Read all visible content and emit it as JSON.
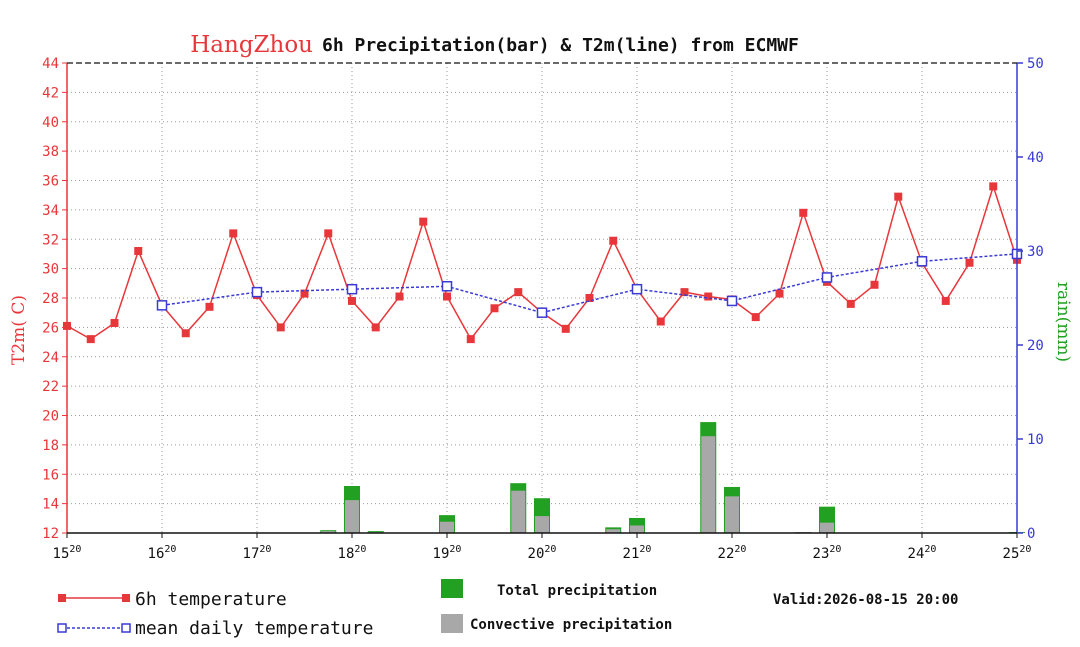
{
  "chart_data": {
    "type": "bar+line",
    "title_city": "HangZhou",
    "title_rest": "6h Precipitation(bar) & T2m(line) from ECMWF",
    "y_left_label": "T2m( C)",
    "y_right_label": "rain(mm)",
    "y_left_range": [
      12,
      44
    ],
    "y_left_ticks": [
      "12",
      "14",
      "16",
      "18",
      "20",
      "22",
      "24",
      "26",
      "28",
      "30",
      "32",
      "34",
      "36",
      "38",
      "40",
      "42",
      "44"
    ],
    "y_right_range": [
      0,
      50
    ],
    "y_right_ticks": [
      "0",
      "10",
      "20",
      "30",
      "40",
      "50"
    ],
    "x_range": [
      15.0,
      25.0
    ],
    "x_ticks": [
      {
        "day": "15",
        "hour": "20"
      },
      {
        "day": "16",
        "hour": "20"
      },
      {
        "day": "17",
        "hour": "20"
      },
      {
        "day": "18",
        "hour": "20"
      },
      {
        "day": "19",
        "hour": "20"
      },
      {
        "day": "20",
        "hour": "20"
      },
      {
        "day": "21",
        "hour": "20"
      },
      {
        "day": "22",
        "hour": "20"
      },
      {
        "day": "23",
        "hour": "20"
      },
      {
        "day": "24",
        "hour": "20"
      },
      {
        "day": "25",
        "hour": "20"
      }
    ],
    "grid": true,
    "series_6h_temperature": {
      "name": "6h temperature",
      "color": "#e8373b",
      "x": [
        15.0,
        15.25,
        15.5,
        15.75,
        16.0,
        16.25,
        16.5,
        16.75,
        17.0,
        17.25,
        17.5,
        17.75,
        18.0,
        18.25,
        18.5,
        18.75,
        19.0,
        19.25,
        19.5,
        19.75,
        20.0,
        20.25,
        20.5,
        20.75,
        21.0,
        21.25,
        21.5,
        21.75,
        22.0,
        22.25,
        22.5,
        22.75,
        23.0,
        23.25,
        23.5,
        23.75,
        24.0,
        24.25,
        24.5,
        24.75,
        25.0
      ],
      "y": [
        26.1,
        25.2,
        26.3,
        31.2,
        27.5,
        25.6,
        27.4,
        32.4,
        28.2,
        26.0,
        28.3,
        32.4,
        27.8,
        26.0,
        28.1,
        33.2,
        28.1,
        25.2,
        27.3,
        28.4,
        27.0,
        25.9,
        28.0,
        31.9,
        28.6,
        26.4,
        28.4,
        28.1,
        27.9,
        26.7,
        28.3,
        33.8,
        29.1,
        27.6,
        28.9,
        34.9,
        30.4,
        27.8,
        30.4,
        35.6,
        30.6
      ]
    },
    "series_mean_daily": {
      "name": "mean daily temperature",
      "color": "#3a3ad6",
      "x": [
        16.0,
        17.0,
        18.0,
        19.0,
        20.0,
        21.0,
        22.0,
        23.0,
        24.0,
        25.0
      ],
      "y": [
        27.5,
        28.4,
        28.6,
        28.8,
        27.0,
        28.6,
        27.8,
        29.4,
        30.5,
        31.0
      ]
    },
    "precip_bars": {
      "total_color": "#22a022",
      "convective_color": "#a8a8a8",
      "x": [
        17.75,
        18.0,
        18.25,
        19.0,
        19.75,
        20.0,
        20.75,
        21.0,
        21.75,
        22.0,
        22.75,
        23.0,
        25.0
      ],
      "total": [
        0.3,
        5.0,
        0.2,
        1.9,
        5.3,
        3.7,
        0.6,
        1.6,
        11.8,
        4.9,
        0.1,
        2.8,
        0.1
      ],
      "convective": [
        0.2,
        3.5,
        0.1,
        1.2,
        4.5,
        1.8,
        0.4,
        0.8,
        10.3,
        3.9,
        0.1,
        1.1,
        0.0
      ]
    },
    "legend": {
      "line1": "6h temperature",
      "line2": "mean daily temperature",
      "bar1": "Total precipitation",
      "bar2": "Convective precipitation",
      "valid": "Valid:2026-08-15 20:00"
    }
  }
}
